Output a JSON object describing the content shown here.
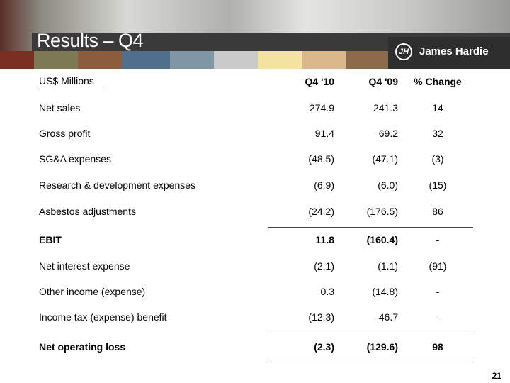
{
  "header": {
    "title": "Results – Q4",
    "logo": "James Hardie"
  },
  "table": {
    "columns": [
      "US$ Millions",
      "Q4 '10",
      "Q4 '09",
      "% Change"
    ],
    "rows": [
      [
        "Net sales",
        "274.9",
        "241.3",
        "14"
      ],
      [
        "Gross profit",
        "91.4",
        "69.2",
        "32"
      ],
      [
        "SG&A expenses",
        "(48.5)",
        "(47.1)",
        "(3)"
      ],
      [
        "Research & development expenses",
        "(6.9)",
        "(6.0)",
        "(15)"
      ],
      [
        "Asbestos adjustments",
        "(24.2)",
        "(176.5)",
        "86"
      ],
      [
        "EBIT",
        "11.8",
        "(160.4)",
        "-"
      ],
      [
        "Net interest expense",
        "(2.1)",
        "(1.1)",
        "(91)"
      ],
      [
        "Other income (expense)",
        "0.3",
        "(14.8)",
        "-"
      ],
      [
        "Income tax (expense) benefit",
        "(12.3)",
        "46.7",
        "-"
      ],
      [
        "Net operating loss",
        "(2.3)",
        "(129.6)",
        "98"
      ]
    ]
  },
  "page_number": "21"
}
